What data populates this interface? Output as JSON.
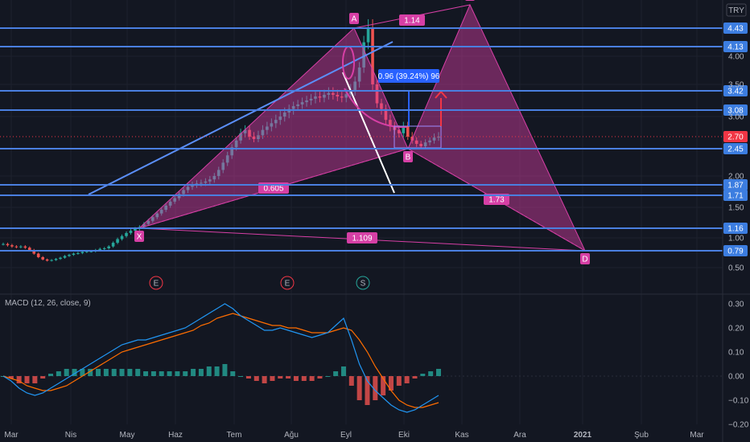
{
  "currency": "TRY",
  "price_axis": {
    "ticks": [
      4.0,
      3.5,
      3.0,
      2.0,
      1.5,
      1.0,
      0.5
    ],
    "tick_labels": [
      "4.00",
      "3.50",
      "3.00",
      "2.00",
      "1.50",
      "1.00",
      "0.50"
    ],
    "level_tags": [
      {
        "value": 4.43,
        "label": "4.43"
      },
      {
        "value": 4.13,
        "label": "4.13"
      },
      {
        "value": 3.42,
        "label": "3.42"
      },
      {
        "value": 3.08,
        "label": "3.08"
      },
      {
        "value": 2.45,
        "label": "2.45"
      },
      {
        "value": 1.87,
        "label": "1.87"
      },
      {
        "value": 1.71,
        "label": "1.71"
      },
      {
        "value": 1.16,
        "label": "1.16"
      },
      {
        "value": 0.79,
        "label": "0.79"
      }
    ],
    "last_price": {
      "value": 2.7,
      "label": "2.70"
    },
    "colors": {
      "level": "#4a7fe0",
      "tag": "#3c7de0",
      "last": "#f23645"
    }
  },
  "time_axis": {
    "labels": [
      "Mar",
      "Nis",
      "May",
      "Haz",
      "Tem",
      "Ağu",
      "Eyl",
      "Eki",
      "Kas",
      "Ara",
      "2021",
      "Şub",
      "Mar"
    ]
  },
  "harmonic_pattern": {
    "points": [
      {
        "name": "X",
        "date": "May",
        "price": 1.16
      },
      {
        "name": "A",
        "date": "Eyl",
        "price": 4.43
      },
      {
        "name": "B",
        "date": "Eki",
        "price": 2.45
      },
      {
        "name": "C",
        "date": "Kas",
        "price": 4.7
      },
      {
        "name": "D",
        "date": "Ara",
        "price": 0.79
      }
    ],
    "ratios": [
      {
        "between": "X-B",
        "label": "0.605"
      },
      {
        "between": "A-C",
        "label": "1.14"
      },
      {
        "between": "B-D",
        "label": "1.73"
      },
      {
        "between": "X-D",
        "label": "1.109"
      }
    ],
    "color": "#d63fa5"
  },
  "measure_label": {
    "text": "0.96 (39.24%) 96",
    "color": "#2962ff"
  },
  "event_markers": [
    {
      "letter": "E",
      "date": "May",
      "color": "#f23645"
    },
    {
      "letter": "E",
      "date": "Tem",
      "color": "#f23645"
    },
    {
      "letter": "S",
      "date": "Ağu",
      "color": "#26a69a"
    }
  ],
  "macd": {
    "title": "MACD (12, 26, close, 9)",
    "ticks": [
      0.3,
      0.2,
      0.1,
      0.0,
      -0.1,
      -0.2
    ],
    "tick_labels": [
      "0.30",
      "0.20",
      "0.10",
      "0.00",
      "−0.10",
      "−0.20"
    ],
    "colors": {
      "macd": "#2196f3",
      "signal": "#ff6d00",
      "hist_up": "#26a69a",
      "hist_down": "#ef5350"
    }
  },
  "chart_data": {
    "type": "candlestick",
    "series_label": "TRY",
    "price": [
      0.9,
      0.88,
      0.86,
      0.85,
      0.86,
      0.84,
      0.8,
      0.74,
      0.68,
      0.64,
      0.62,
      0.63,
      0.65,
      0.67,
      0.7,
      0.72,
      0.74,
      0.75,
      0.77,
      0.78,
      0.78,
      0.8,
      0.82,
      0.83,
      0.86,
      0.92,
      0.98,
      1.03,
      1.08,
      1.12,
      1.15,
      1.18,
      1.23,
      1.28,
      1.34,
      1.4,
      1.46,
      1.53,
      1.6,
      1.66,
      1.73,
      1.79,
      1.84,
      1.87,
      1.89,
      1.9,
      1.92,
      1.95,
      2.0,
      2.1,
      2.22,
      2.34,
      2.48,
      2.62,
      2.75,
      2.8,
      2.7,
      2.65,
      2.72,
      2.8,
      2.85,
      2.9,
      2.95,
      3.0,
      3.05,
      3.1,
      3.15,
      3.18,
      3.22,
      3.25,
      3.28,
      3.32,
      3.3,
      3.35,
      3.38,
      3.35,
      3.32,
      3.3,
      3.36,
      3.42,
      3.55,
      3.8,
      4.2,
      4.43,
      3.5,
      3.2,
      3.1,
      2.95,
      2.85,
      2.8,
      2.75,
      2.85,
      2.7,
      2.62,
      2.55,
      2.5,
      2.58,
      2.62,
      2.68,
      2.7
    ],
    "macd_line": [
      0.0,
      -0.02,
      -0.05,
      -0.07,
      -0.08,
      -0.07,
      -0.05,
      -0.03,
      -0.01,
      0.01,
      0.03,
      0.05,
      0.07,
      0.09,
      0.11,
      0.13,
      0.14,
      0.15,
      0.15,
      0.16,
      0.17,
      0.18,
      0.19,
      0.2,
      0.22,
      0.24,
      0.26,
      0.28,
      0.3,
      0.28,
      0.25,
      0.23,
      0.21,
      0.19,
      0.19,
      0.2,
      0.19,
      0.18,
      0.17,
      0.16,
      0.17,
      0.18,
      0.21,
      0.24,
      0.15,
      0.05,
      -0.02,
      -0.06,
      -0.09,
      -0.12,
      -0.14,
      -0.15,
      -0.14,
      -0.12,
      -0.1,
      -0.08
    ],
    "signal_line": [
      0.0,
      -0.01,
      -0.02,
      -0.04,
      -0.05,
      -0.06,
      -0.06,
      -0.05,
      -0.04,
      -0.02,
      0.0,
      0.02,
      0.04,
      0.06,
      0.08,
      0.1,
      0.11,
      0.12,
      0.13,
      0.14,
      0.15,
      0.16,
      0.17,
      0.18,
      0.19,
      0.21,
      0.22,
      0.24,
      0.25,
      0.26,
      0.25,
      0.24,
      0.23,
      0.22,
      0.21,
      0.21,
      0.2,
      0.2,
      0.19,
      0.18,
      0.18,
      0.18,
      0.19,
      0.2,
      0.19,
      0.15,
      0.1,
      0.04,
      -0.01,
      -0.06,
      -0.1,
      -0.12,
      -0.13,
      -0.13,
      -0.12,
      -0.11
    ],
    "histogram": [
      0.0,
      -0.01,
      -0.03,
      -0.03,
      -0.03,
      -0.01,
      0.01,
      0.02,
      0.03,
      0.03,
      0.03,
      0.03,
      0.03,
      0.03,
      0.03,
      0.03,
      0.03,
      0.03,
      0.02,
      0.02,
      0.02,
      0.02,
      0.02,
      0.02,
      0.03,
      0.03,
      0.04,
      0.04,
      0.05,
      0.02,
      0.0,
      -0.01,
      -0.02,
      -0.03,
      -0.02,
      -0.01,
      -0.01,
      -0.02,
      -0.02,
      -0.02,
      -0.01,
      0.0,
      0.02,
      0.04,
      -0.04,
      -0.1,
      -0.12,
      -0.1,
      -0.08,
      -0.06,
      -0.04,
      -0.03,
      -0.01,
      0.01,
      0.02,
      0.03
    ],
    "ylim_price": [
      0.45,
      4.9
    ],
    "ylim_macd": [
      -0.2,
      0.32
    ],
    "grid": true
  }
}
